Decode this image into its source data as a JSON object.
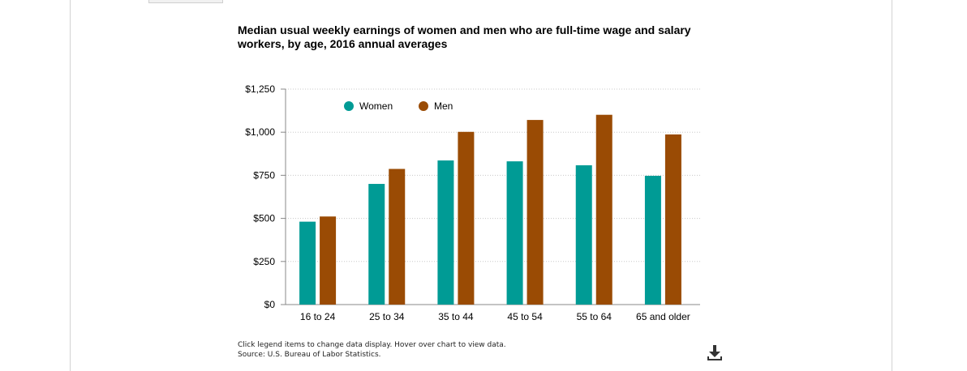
{
  "chart_data": {
    "type": "bar",
    "title_lines": [
      "Median usual weekly earnings of women and men who are full-time wage and salary",
      "workers, by age, 2016 annual averages"
    ],
    "categories": [
      "16 to 24",
      "25 to 34",
      "35 to 44",
      "45 to 54",
      "55 to 64",
      "65 and older"
    ],
    "series": [
      {
        "name": "Women",
        "values": [
          481,
          700,
          836,
          831,
          808,
          747
        ],
        "color": "#009b95"
      },
      {
        "name": "Men",
        "values": [
          511,
          787,
          1002,
          1071,
          1101,
          987
        ],
        "color": "#9a4b04"
      }
    ],
    "yticks": [
      "$0",
      "$250",
      "$500",
      "$750",
      "$1,000",
      "$1,250"
    ],
    "ytick_values": [
      0,
      250,
      500,
      750,
      1000,
      1250
    ],
    "ylim": [
      0,
      1250
    ],
    "xlabel": "",
    "ylabel": "",
    "grid": true,
    "legend_position": "top-left"
  },
  "footnote": {
    "line1": "Click legend items to change data display. Hover over chart to view data.",
    "line2": "Source: U.S. Bureau of Labor Statistics."
  },
  "icons": {
    "download": "download-icon"
  }
}
